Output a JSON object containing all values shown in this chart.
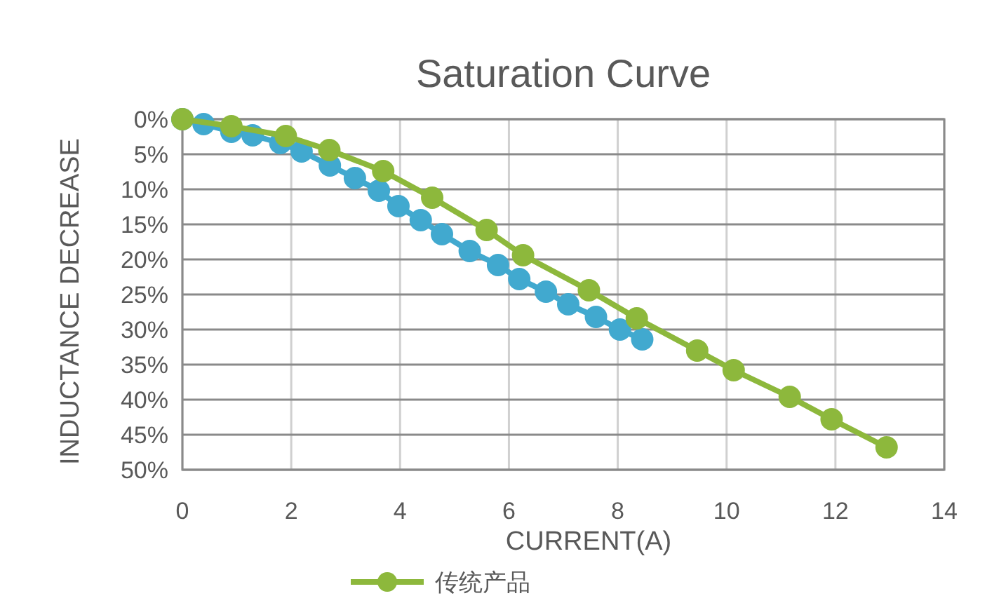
{
  "chart_data": {
    "type": "line",
    "title": "Saturation Curve",
    "xlabel": "CURRENT(A)",
    "ylabel": "INDUCTANCE DECREASE",
    "xlim": [
      0,
      14
    ],
    "xticks": [
      0,
      2,
      4,
      6,
      8,
      10,
      12,
      14
    ],
    "ylim": [
      50,
      0
    ],
    "yticks": [
      {
        "value": 0,
        "label": "0%"
      },
      {
        "value": 5,
        "label": "5%"
      },
      {
        "value": 10,
        "label": "10%"
      },
      {
        "value": 15,
        "label": "15%"
      },
      {
        "value": 20,
        "label": "20%"
      },
      {
        "value": 25,
        "label": "25%"
      },
      {
        "value": 30,
        "label": "30%"
      },
      {
        "value": 35,
        "label": "35%"
      },
      {
        "value": 40,
        "label": "40%"
      },
      {
        "value": 45,
        "label": "45%"
      },
      {
        "value": 50,
        "label": "50%"
      }
    ],
    "grid": true,
    "legend": "bottom",
    "marker": "circle",
    "line_style": "solid",
    "series": [
      {
        "color": "#41a9cf",
        "x": [
          0,
          0.39,
          0.9,
          1.29,
          1.8,
          2.19,
          2.71,
          3.17,
          3.61,
          3.97,
          4.38,
          4.77,
          5.28,
          5.8,
          6.19,
          6.68,
          7.09,
          7.6,
          8.04,
          8.45
        ],
        "values": [
          0,
          0.7,
          1.8,
          2.3,
          3.4,
          4.6,
          6.6,
          8.4,
          10.2,
          12.4,
          14.4,
          16.4,
          18.8,
          20.8,
          22.8,
          24.6,
          26.4,
          28.2,
          30.0,
          31.4
        ]
      },
      {
        "name": "传统产品",
        "color": "#8db83c",
        "x": [
          0,
          0.9,
          1.9,
          2.7,
          3.69,
          4.59,
          5.59,
          6.26,
          7.47,
          8.35,
          9.46,
          10.13,
          11.16,
          11.93,
          12.94
        ],
        "values": [
          0,
          1.0,
          2.4,
          4.4,
          7.4,
          11.2,
          15.8,
          19.4,
          24.4,
          28.4,
          33.0,
          35.8,
          39.6,
          42.8,
          46.8
        ]
      }
    ]
  }
}
